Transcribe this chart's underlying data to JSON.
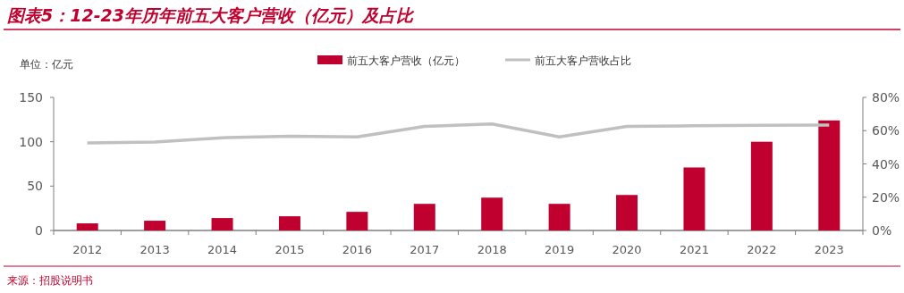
{
  "chart_data": {
    "type": "bar",
    "title": "图表5：12-23年历年前五大客户营收（亿元）及占比",
    "ylabel": "单位：亿元",
    "categories": [
      "2012",
      "2013",
      "2014",
      "2015",
      "2016",
      "2017",
      "2018",
      "2019",
      "2020",
      "2021",
      "2022",
      "2023"
    ],
    "series": [
      {
        "name": "前五大客户营收（亿元）",
        "color": "#c0002e",
        "values": [
          8,
          11,
          14,
          16,
          21,
          30,
          37,
          30,
          40,
          71,
          100,
          124
        ]
      },
      {
        "name": "前五大客户营收占比",
        "type": "line",
        "axis": "y2",
        "color": "#c0c0c0",
        "values": [
          52.6,
          53.1,
          55.7,
          56.7,
          56.2,
          62.5,
          64,
          56.2,
          62.5,
          62.9,
          63.2,
          63.4
        ]
      }
    ],
    "ylim": [
      0,
      150
    ],
    "yticks": [
      0,
      50,
      100,
      150
    ],
    "y2lim": [
      0,
      80
    ],
    "y2ticks": [
      {
        "value": 0,
        "label": "0%"
      },
      {
        "value": 20,
        "label": "20%"
      },
      {
        "value": 40,
        "label": "40%"
      },
      {
        "value": 60,
        "label": "60%"
      },
      {
        "value": 80,
        "label": "80%"
      }
    ],
    "legend": "top",
    "grid": false,
    "marker": "none",
    "annotations": [
      "来源：招股说明书"
    ]
  }
}
